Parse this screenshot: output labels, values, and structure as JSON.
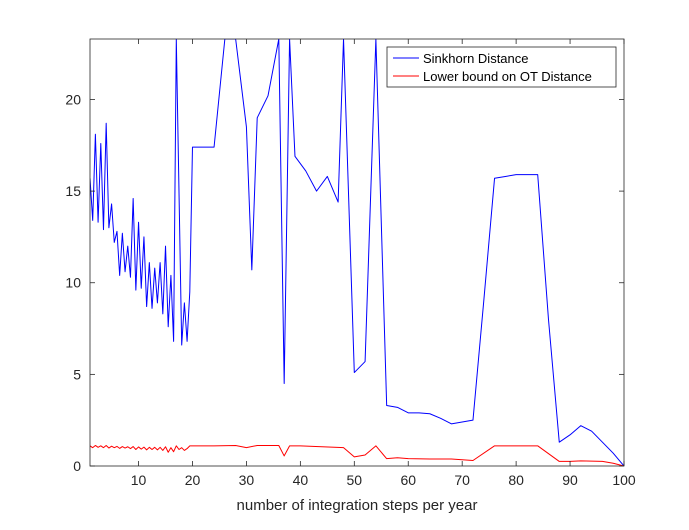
{
  "chart_data": {
    "type": "line",
    "xlabel": "number of integration steps per year",
    "ylabel": "",
    "xlim": [
      1,
      100
    ],
    "ylim": [
      0,
      23.3
    ],
    "xticks": [
      10,
      20,
      30,
      40,
      50,
      60,
      70,
      80,
      90,
      100
    ],
    "yticks": [
      0,
      5,
      10,
      15,
      20
    ],
    "grid": false,
    "legend_position": "top-right",
    "series": [
      {
        "name": "Sinkhorn Distance",
        "color": "#0000ff",
        "x": [
          1,
          1.5,
          2,
          2.5,
          3,
          3.5,
          4,
          4.5,
          5,
          5.5,
          6,
          6.5,
          7,
          7.5,
          8,
          8.5,
          9,
          9.5,
          10,
          10.5,
          11,
          11.5,
          12,
          12.5,
          13,
          13.5,
          14,
          14.5,
          15,
          15.5,
          16,
          16.5,
          17,
          18,
          18.5,
          19,
          19.5,
          20,
          22,
          24,
          26,
          28,
          30,
          31,
          32,
          34,
          36,
          37,
          38,
          39,
          41,
          43,
          45,
          47,
          48,
          50,
          52,
          54,
          56,
          58,
          60,
          62,
          64,
          66,
          68,
          70,
          72,
          74,
          76,
          78,
          80,
          82,
          84,
          86,
          88,
          90,
          92,
          94,
          96,
          98,
          100
        ],
        "y": [
          15.7,
          13.4,
          18.1,
          13.3,
          17.6,
          12.9,
          18.7,
          13.0,
          14.3,
          12.2,
          12.8,
          10.4,
          12.7,
          10.6,
          12.0,
          10.3,
          14.6,
          9.6,
          13.3,
          9.7,
          12.5,
          8.7,
          11.1,
          8.6,
          10.8,
          8.9,
          11.1,
          8.3,
          12.0,
          7.6,
          10.4,
          6.8,
          23.3,
          6.6,
          8.9,
          6.8,
          9.5,
          17.4,
          17.4,
          17.4,
          23.3,
          23.3,
          18.5,
          10.7,
          19.0,
          20.2,
          23.3,
          4.5,
          23.3,
          16.9,
          16.1,
          15.0,
          15.8,
          14.4,
          23.3,
          5.1,
          5.7,
          23.3,
          3.3,
          3.2,
          2.9,
          2.9,
          2.85,
          2.6,
          2.3,
          2.4,
          2.5,
          9.0,
          15.7,
          15.8,
          15.9,
          15.9,
          15.9,
          8.0,
          1.3,
          1.7,
          2.2,
          1.9,
          1.3,
          0.7,
          0.0
        ]
      },
      {
        "name": "Lower bound on OT Distance",
        "color": "#ff0000",
        "x": [
          1,
          1.5,
          2,
          2.5,
          3,
          3.5,
          4,
          4.5,
          5,
          5.5,
          6,
          6.5,
          7,
          7.5,
          8,
          8.5,
          9,
          9.5,
          10,
          10.5,
          11,
          11.5,
          12,
          12.5,
          13,
          13.5,
          14,
          14.5,
          15,
          15.5,
          16,
          16.5,
          17,
          17.5,
          18,
          18.5,
          19,
          19.5,
          20,
          24,
          28,
          30,
          32,
          36,
          37,
          38,
          40,
          44,
          48,
          50,
          52,
          54,
          56,
          58,
          60,
          64,
          68,
          72,
          76,
          80,
          84,
          88,
          90,
          92,
          96,
          98,
          100
        ],
        "y": [
          1.1,
          1.0,
          1.12,
          1.02,
          1.1,
          1.0,
          1.12,
          0.98,
          1.08,
          1.0,
          1.07,
          0.96,
          1.06,
          0.98,
          1.05,
          0.95,
          1.06,
          0.9,
          1.04,
          0.92,
          1.03,
          0.88,
          1.02,
          0.9,
          1.02,
          0.88,
          1.02,
          0.85,
          1.05,
          0.75,
          1.0,
          0.78,
          1.1,
          0.9,
          1.0,
          0.85,
          0.95,
          1.1,
          1.1,
          1.1,
          1.12,
          1.0,
          1.12,
          1.12,
          0.55,
          1.1,
          1.1,
          1.05,
          1.0,
          0.5,
          0.6,
          1.1,
          0.4,
          0.45,
          0.4,
          0.38,
          0.38,
          0.3,
          1.1,
          1.1,
          1.1,
          0.25,
          0.25,
          0.28,
          0.25,
          0.15,
          0.0
        ]
      }
    ]
  }
}
